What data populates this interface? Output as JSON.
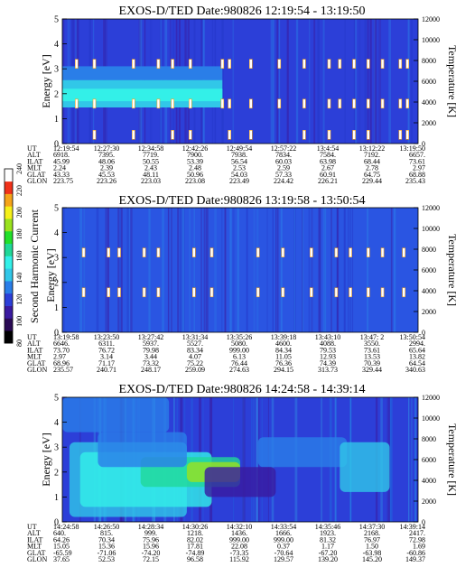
{
  "chart_data": [
    {
      "type": "heatmap",
      "title": "EXOS-D/TED   Date:980826   12:19:54 - 13:19:50",
      "ylabel": "Energy [eV]",
      "y2label": "Temperature [K]",
      "ylim": [
        0,
        5
      ],
      "y2lim": [
        0,
        12000
      ],
      "yticks": [
        "0",
        "1",
        "2",
        "3",
        "4",
        "5"
      ],
      "y2ticks": [
        "0",
        "2000",
        "4000",
        "6000",
        "8000",
        "10000",
        "12000"
      ],
      "bands": [
        {
          "x0": 0.0,
          "x1": 0.45,
          "y0": 1.45,
          "y1": 2.55,
          "color": "#31c7e8"
        },
        {
          "x0": 0.0,
          "x1": 0.45,
          "y0": 1.7,
          "y1": 2.2,
          "color": "#33f0e8"
        },
        {
          "x0": 0.0,
          "x1": 0.45,
          "y0": 2.55,
          "y1": 3.1,
          "color": "#2a7ee8"
        }
      ],
      "spots_y": [
        3.2,
        1.6,
        0.35
      ],
      "spots_x": [
        0.04,
        0.09,
        0.2,
        0.27,
        0.31,
        0.36,
        0.45,
        0.47,
        0.53,
        0.61,
        0.68,
        0.75,
        0.78,
        0.82,
        0.86,
        0.9,
        0.95,
        0.97
      ],
      "info": {
        "labels": [
          "UT",
          "ALT",
          "ILAT",
          "MLT",
          "GLAT",
          "GLON"
        ],
        "columns": [
          [
            "12:19:54",
            "6918.",
            "45.99",
            "2.24",
            "43.33",
            "223.75"
          ],
          [
            "12:27:30",
            "7395.",
            "48.06",
            "2.39",
            "45.53",
            "223.26"
          ],
          [
            "12:34:58",
            "7719.",
            "50.55",
            "2.43",
            "48.11",
            "223.03"
          ],
          [
            "12:42:26",
            "7900.",
            "53.39",
            "2.48",
            "50.96",
            "223.08"
          ],
          [
            "12:49:54",
            "7938.",
            "56.54",
            "2.53",
            "54.03",
            "223.49"
          ],
          [
            "12:57:22",
            "7834.",
            "60.03",
            "2.59",
            "57.33",
            "224.42"
          ],
          [
            "13:4:54",
            "7584.",
            "63.98",
            "2.67",
            "60.91",
            "226.21"
          ],
          [
            "13:12:22",
            "7192.",
            "68.44",
            "2.78",
            "64.75",
            "229.44"
          ],
          [
            "13:19:50",
            "6657.",
            "73.61",
            "2.97",
            "68.88",
            "235.43"
          ]
        ]
      }
    },
    {
      "type": "heatmap",
      "title": "EXOS-D/TED   Date:980826   13:19:58 - 13:50:54",
      "ylabel": "Energy [eV]",
      "y2label": "Temperature [K]",
      "ylim": [
        0,
        5
      ],
      "y2lim": [
        0,
        12000
      ],
      "yticks": [
        "0",
        "1",
        "2",
        "3",
        "4",
        "5"
      ],
      "y2ticks": [
        "0",
        "2000",
        "4000",
        "6000",
        "8000",
        "10000",
        "12000"
      ],
      "spots_y": [
        3.2,
        1.6
      ],
      "spots_x": [
        0.06,
        0.13,
        0.16,
        0.23,
        0.27,
        0.37,
        0.42,
        0.55,
        0.62,
        0.7,
        0.77,
        0.81,
        0.86,
        0.9,
        0.96
      ],
      "info": {
        "labels": [
          "UT",
          "ALT",
          "ILAT",
          "MLT",
          "GLAT",
          "GLON"
        ],
        "columns": [
          [
            "13:19:58",
            "6646.",
            "73.70",
            "2.97",
            "68.96",
            "235.57"
          ],
          [
            "13:23:50",
            "6311.",
            "76.72",
            "3.14",
            "71.17",
            "240.71"
          ],
          [
            "13:27:42",
            "5937.",
            "79.98",
            "3.44",
            "73.32",
            "248.17"
          ],
          [
            "13:31:34",
            "5527.",
            "83.34",
            "4.07",
            "75.22",
            "259.09"
          ],
          [
            "13:35:26",
            "5080.",
            "999.00",
            "6.13",
            "76.44",
            "274.63"
          ],
          [
            "13:39:18",
            "4600.",
            "84.34",
            "11.05",
            "76.36",
            "294.15"
          ],
          [
            "13:43:10",
            "4088.",
            "79.53",
            "12.93",
            "74.39",
            "313.73"
          ],
          [
            "13:47: 2",
            "3550.",
            "73.61",
            "13.53",
            "70.39",
            "329.44"
          ],
          [
            "13:50:54",
            "2994.",
            "65.64",
            "13.82",
            "64.54",
            "340.63"
          ]
        ]
      }
    },
    {
      "type": "heatmap",
      "title": "EXOS-D/TED   Date:980826   14:24:58 - 14:39:14",
      "ylabel": "Energy [eV]",
      "y2label": "Temperature [K]",
      "ylim": [
        0,
        5
      ],
      "y2lim": [
        0,
        12000
      ],
      "yticks": [
        "0",
        "1",
        "2",
        "3",
        "4",
        "5"
      ],
      "y2ticks": [
        "0",
        "2000",
        "4000",
        "6000",
        "8000",
        "10000",
        "12000"
      ],
      "info": {
        "labels": [
          "UT",
          "ALT",
          "ILAT",
          "MLT",
          "GLAT",
          "GLON"
        ],
        "columns": [
          [
            "14:24:58",
            "640.",
            "64.26",
            "15.05",
            "-65.59",
            "37.65"
          ],
          [
            "14:26:50",
            "815.",
            "70.34",
            "15.36",
            "-71.06",
            "52.53"
          ],
          [
            "14:28:34",
            "999.",
            "75.96",
            "15.96",
            "-74.20",
            "72.15"
          ],
          [
            "14:30:26",
            "1218.",
            "82.02",
            "17.81",
            "-74.89",
            "96.58"
          ],
          [
            "14:32:10",
            "1436.",
            "999.00",
            "22.08",
            "-73.35",
            "115.92"
          ],
          [
            "14:33:54",
            "1666.",
            "999.00",
            "0.37",
            "-70.64",
            "129.57"
          ],
          [
            "14:35:46",
            "1923.",
            "81.32",
            "1.17",
            "-67.20",
            "139.20"
          ],
          [
            "14:37:30",
            "2168.",
            "76.97",
            "1.50",
            "-63.98",
            "145.20"
          ],
          [
            "14:39:14",
            "2417.",
            "72.98",
            "1.69",
            "-60.86",
            "149.37"
          ]
        ]
      }
    }
  ],
  "colorbar": {
    "label": "Second Harmonic Current",
    "ticks": [
      "80",
      "100",
      "120",
      "140",
      "160",
      "180",
      "200",
      "220",
      "240"
    ],
    "range": [
      80,
      240
    ],
    "colors": [
      "#000000",
      "#2a0a55",
      "#3a1aa0",
      "#2c3fd8",
      "#2a7ee8",
      "#31c7e8",
      "#33f0e8",
      "#20d898",
      "#22e02a",
      "#9ae21e",
      "#f5f01a",
      "#f5a41a",
      "#f0321a",
      "#ffffff"
    ]
  }
}
